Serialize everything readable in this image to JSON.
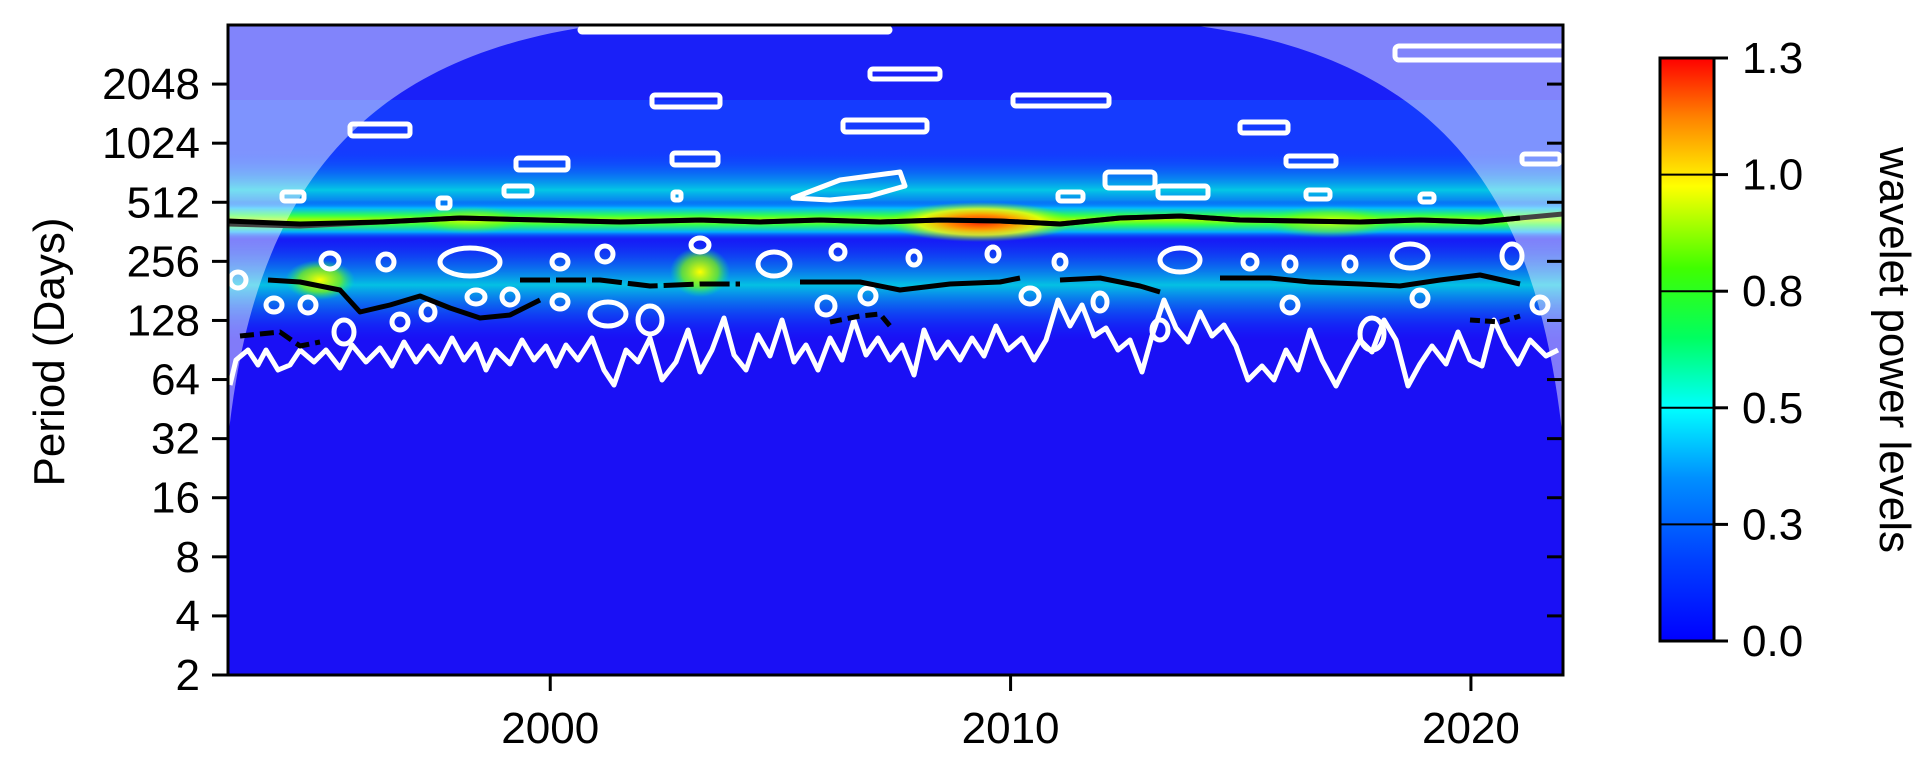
{
  "chart_data": {
    "type": "heatmap",
    "title": "",
    "xlabel": "",
    "ylabel": "Period (Days)",
    "x_range": [
      1993,
      2022
    ],
    "x_ticks": [
      "2000",
      "2010",
      "2020"
    ],
    "x_tick_values": [
      2000,
      2010,
      2020
    ],
    "y_scale": "log2",
    "y_range_days": [
      2,
      4096
    ],
    "y_ticks": [
      "2",
      "4",
      "8",
      "16",
      "32",
      "64",
      "128",
      "256",
      "512",
      "1024",
      "2048"
    ],
    "y_tick_values": [
      2,
      4,
      8,
      16,
      32,
      64,
      128,
      256,
      512,
      1024,
      2048
    ],
    "colorbar": {
      "label": "wavelet power levels",
      "range": [
        0.0,
        1.3
      ],
      "ticks": [
        "0.0",
        "0.3",
        "0.5",
        "0.8",
        "1.0",
        "1.3"
      ],
      "tick_values": [
        0.0,
        0.26,
        0.52,
        0.78,
        1.04,
        1.3
      ],
      "colormap": [
        "#0000ff",
        "#0090ff",
        "#00ffff",
        "#00ff60",
        "#40ff00",
        "#ffff00",
        "#ff8000",
        "#ff0000"
      ]
    },
    "features": {
      "dominant_ridge_period_days": 365,
      "strongest_power_year": 2009,
      "strongest_power_value": 1.3,
      "cone_of_influence": "shaded outside",
      "significance_contours": "white",
      "local_maxima_ridges": "black"
    }
  }
}
